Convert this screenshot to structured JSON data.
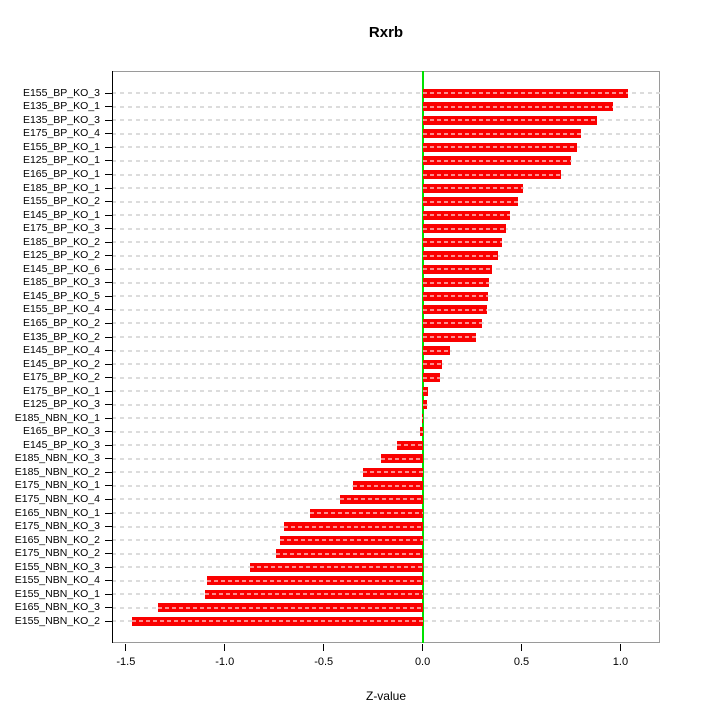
{
  "title": "Rxrb",
  "chart_data": {
    "type": "bar",
    "orientation": "horizontal",
    "title": "Rxrb",
    "xlabel": "Z-value",
    "xlim": [
      -1.57,
      1.2
    ],
    "x_ticks": [
      -1.5,
      -1.0,
      -0.5,
      0.0,
      0.5,
      1.0
    ],
    "x_tick_labels": [
      "-1.5",
      "-1.0",
      "-0.5",
      "0.0",
      "0.5",
      "1.0"
    ],
    "grid": true,
    "legend": "none",
    "bar_color": "#fa0000",
    "zero_line_color": "#00e100",
    "grid_color": "#dcdcdc",
    "categories": [
      "E155_BP_KO_3",
      "E135_BP_KO_1",
      "E135_BP_KO_3",
      "E175_BP_KO_4",
      "E155_BP_KO_1",
      "E125_BP_KO_1",
      "E165_BP_KO_1",
      "E185_BP_KO_1",
      "E155_BP_KO_2",
      "E145_BP_KO_1",
      "E175_BP_KO_3",
      "E185_BP_KO_2",
      "E125_BP_KO_2",
      "E145_BP_KO_6",
      "E185_BP_KO_3",
      "E145_BP_KO_5",
      "E155_BP_KO_4",
      "E165_BP_KO_2",
      "E135_BP_KO_2",
      "E145_BP_KO_4",
      "E145_BP_KO_2",
      "E175_BP_KO_2",
      "E175_BP_KO_1",
      "E125_BP_KO_3",
      "E185_NBN_KO_1",
      "E165_BP_KO_3",
      "E145_BP_KO_3",
      "E185_NBN_KO_3",
      "E185_NBN_KO_2",
      "E175_NBN_KO_1",
      "E175_NBN_KO_4",
      "E165_NBN_KO_1",
      "E175_NBN_KO_3",
      "E165_NBN_KO_2",
      "E175_NBN_KO_2",
      "E155_NBN_KO_3",
      "E155_NBN_KO_4",
      "E155_NBN_KO_1",
      "E165_NBN_KO_3",
      "E155_NBN_KO_2"
    ],
    "values": [
      1.04,
      0.96,
      0.88,
      0.8,
      0.78,
      0.75,
      0.7,
      0.51,
      0.48,
      0.44,
      0.42,
      0.4,
      0.38,
      0.35,
      0.335,
      0.33,
      0.325,
      0.3,
      0.27,
      0.14,
      0.1,
      0.09,
      0.025,
      0.02,
      -0.004,
      -0.015,
      -0.13,
      -0.21,
      -0.3,
      -0.35,
      -0.42,
      -0.57,
      -0.7,
      -0.72,
      -0.74,
      -0.87,
      -1.09,
      -1.1,
      -1.34,
      -1.47
    ]
  }
}
